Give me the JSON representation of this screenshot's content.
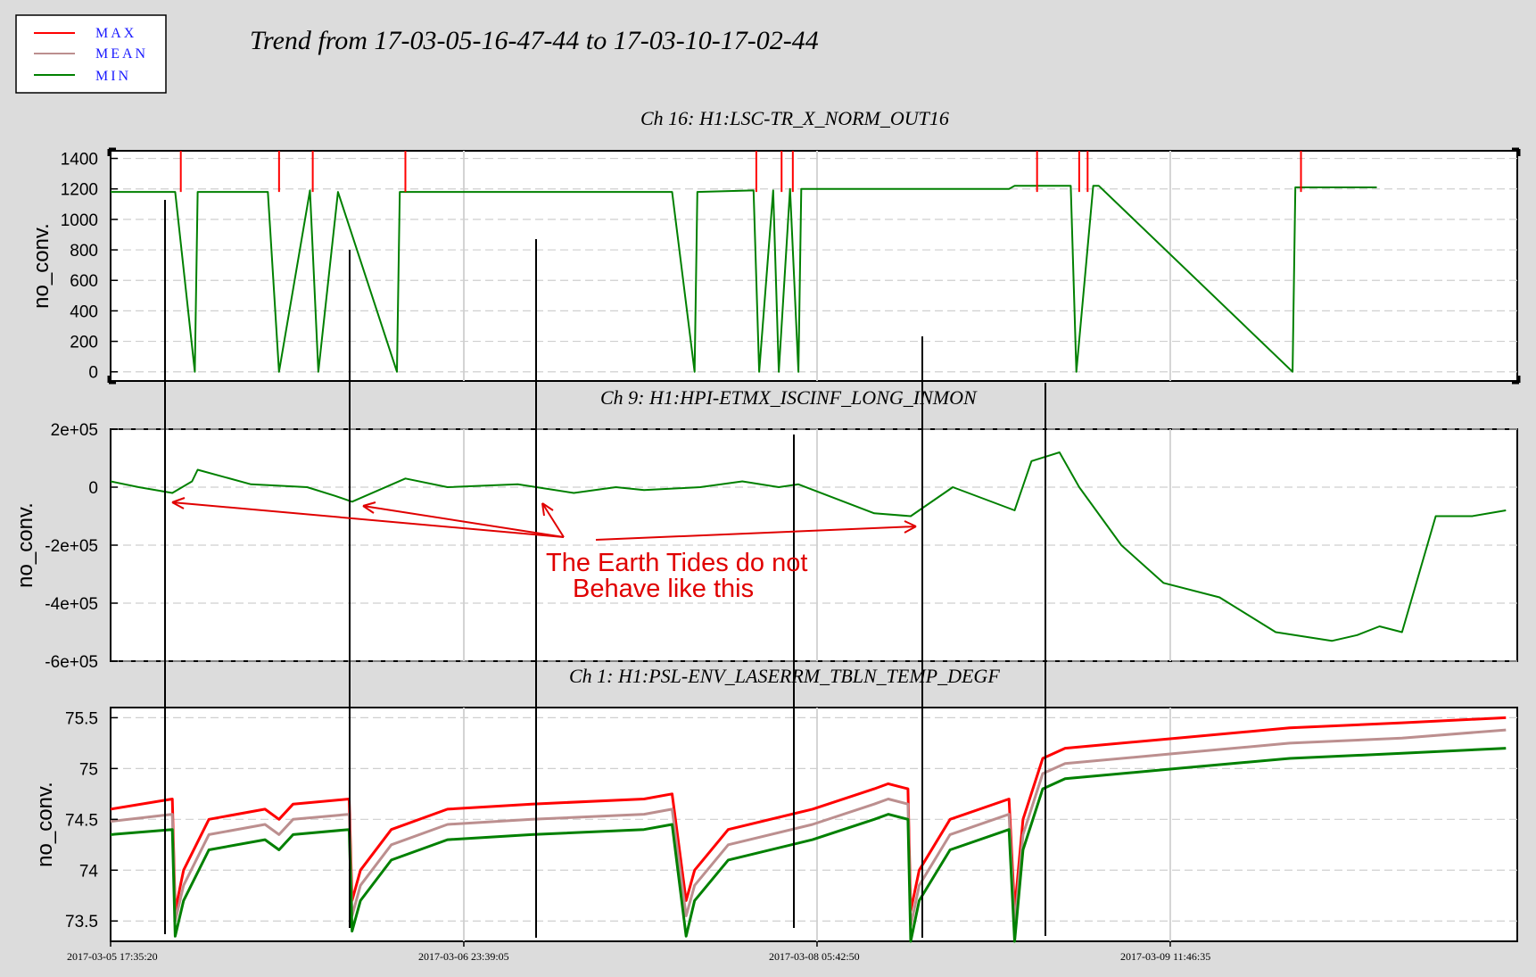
{
  "title": "Trend from 17-03-05-16-47-44 to 17-03-10-17-02-44",
  "legend": [
    {
      "label": "MAX",
      "color": "#ff0000"
    },
    {
      "label": "MEAN",
      "color": "#bc8f8f"
    },
    {
      "label": "MIN",
      "color": "#008000"
    }
  ],
  "x_tick_labels": [
    "2017-03-05 17:35:20",
    "2017-03-06 23:39:05",
    "2017-03-08 05:42:50",
    "2017-03-09 11:46:35"
  ],
  "annotation": {
    "line1": "The Earth Tides do not",
    "line2": "Behave like this",
    "color": "#e00000"
  },
  "chart_data": [
    {
      "type": "line",
      "title": "Ch 16: H1:LSC-TR_X_NORM_OUT16",
      "ylabel": "no_conv.",
      "ylim": [
        -60,
        1450
      ],
      "y_ticks": [
        0,
        200,
        400,
        600,
        800,
        1000,
        1200,
        1400
      ],
      "y_tick_labels": [
        "0",
        "200",
        "400",
        "600",
        "800",
        "1000",
        "1200",
        "1400"
      ],
      "x_days": [
        0.0,
        0.23,
        0.3,
        0.31,
        0.56,
        0.6,
        0.71,
        0.74,
        0.81,
        1.02,
        1.03,
        2.0,
        2.08,
        2.09,
        2.29,
        2.31,
        2.36,
        2.38,
        2.42,
        2.45,
        2.46,
        3.2,
        3.22,
        3.42,
        3.44,
        3.5,
        3.52,
        4.21,
        4.22,
        4.51
      ],
      "series": [
        {
          "name": "MIN",
          "values": [
            1180,
            1180,
            0,
            1180,
            1180,
            0,
            1190,
            0,
            1180,
            0,
            1180,
            1180,
            0,
            1180,
            1190,
            0,
            1190,
            0,
            1200,
            0,
            1200,
            1200,
            1220,
            1220,
            0,
            1220,
            1220,
            0,
            1210,
            1210
          ]
        }
      ],
      "spikes_days": [
        0.25,
        0.6,
        0.72,
        1.05,
        2.3,
        2.39,
        2.43,
        3.3,
        3.45,
        3.48,
        4.24
      ]
    },
    {
      "type": "line",
      "title": "Ch 9: H1:HPI-ETMX_ISCINF_LONG_INMON",
      "ylabel": "no_conv.",
      "ylim": [
        -600000,
        200000
      ],
      "y_ticks": [
        200000,
        0,
        -200000,
        -400000,
        -600000
      ],
      "y_tick_labels": [
        "2e+05",
        "0",
        "-2e+05",
        "-4e+05",
        "-6e+05"
      ],
      "x_days": [
        0.0,
        0.1,
        0.22,
        0.29,
        0.31,
        0.5,
        0.7,
        0.8,
        0.86,
        1.05,
        1.2,
        1.45,
        1.65,
        1.8,
        1.9,
        2.1,
        2.25,
        2.38,
        2.45,
        2.72,
        2.85,
        3.0,
        3.22,
        3.28,
        3.38,
        3.45,
        3.6,
        3.75,
        3.95,
        4.15,
        4.35,
        4.44,
        4.52,
        4.6,
        4.72,
        4.85,
        4.97
      ],
      "series": [
        {
          "name": "MIN",
          "values": [
            20000,
            0,
            -20000,
            20000,
            60000,
            10000,
            0,
            -30000,
            -50000,
            30000,
            0,
            10000,
            -20000,
            0,
            -10000,
            0,
            20000,
            0,
            10000,
            -90000,
            -100000,
            0,
            -80000,
            90000,
            120000,
            0,
            -200000,
            -330000,
            -380000,
            -500000,
            -530000,
            -510000,
            -480000,
            -500000,
            -100000,
            -100000,
            -80000
          ]
        }
      ]
    },
    {
      "type": "line",
      "title": "Ch 1: H1:PSL-ENV_LASERRM_TBLN_TEMP_DEGF",
      "ylabel": "no_conv.",
      "ylim": [
        73.3,
        75.6
      ],
      "y_ticks": [
        73.5,
        74,
        74.5,
        75,
        75.5
      ],
      "y_tick_labels": [
        "73.5",
        "74",
        "74.5",
        "75",
        "75.5"
      ],
      "x_days": [
        0.0,
        0.22,
        0.23,
        0.26,
        0.35,
        0.55,
        0.6,
        0.65,
        0.85,
        0.86,
        0.89,
        1.0,
        1.2,
        1.5,
        1.9,
        2.0,
        2.05,
        2.08,
        2.2,
        2.5,
        2.72,
        2.77,
        2.84,
        2.85,
        2.88,
        2.99,
        3.2,
        3.22,
        3.25,
        3.32,
        3.4,
        3.8,
        4.2,
        4.6,
        4.97
      ],
      "series": [
        {
          "name": "MAX",
          "values": [
            74.6,
            74.7,
            73.6,
            74.0,
            74.5,
            74.6,
            74.5,
            74.65,
            74.7,
            73.7,
            74.0,
            74.4,
            74.6,
            74.65,
            74.7,
            74.75,
            73.7,
            74.0,
            74.4,
            74.6,
            74.8,
            74.85,
            74.8,
            73.6,
            74.0,
            74.5,
            74.7,
            73.6,
            74.5,
            75.1,
            75.2,
            75.3,
            75.4,
            75.45,
            75.5
          ]
        },
        {
          "name": "MEAN",
          "values": [
            74.48,
            74.55,
            73.5,
            73.85,
            74.35,
            74.45,
            74.35,
            74.5,
            74.55,
            73.55,
            73.85,
            74.25,
            74.45,
            74.5,
            74.55,
            74.6,
            73.55,
            73.85,
            74.25,
            74.45,
            74.65,
            74.7,
            74.65,
            73.45,
            73.85,
            74.35,
            74.55,
            73.45,
            74.35,
            74.95,
            75.05,
            75.15,
            75.25,
            75.3,
            75.38
          ]
        },
        {
          "name": "MIN",
          "values": [
            74.35,
            74.4,
            73.35,
            73.7,
            74.2,
            74.3,
            74.2,
            74.35,
            74.4,
            73.4,
            73.7,
            74.1,
            74.3,
            74.35,
            74.4,
            74.45,
            73.35,
            73.7,
            74.1,
            74.3,
            74.5,
            74.55,
            74.5,
            73.3,
            73.7,
            74.2,
            74.4,
            73.3,
            74.2,
            74.8,
            74.9,
            75.0,
            75.1,
            75.15,
            75.2
          ]
        }
      ]
    }
  ]
}
